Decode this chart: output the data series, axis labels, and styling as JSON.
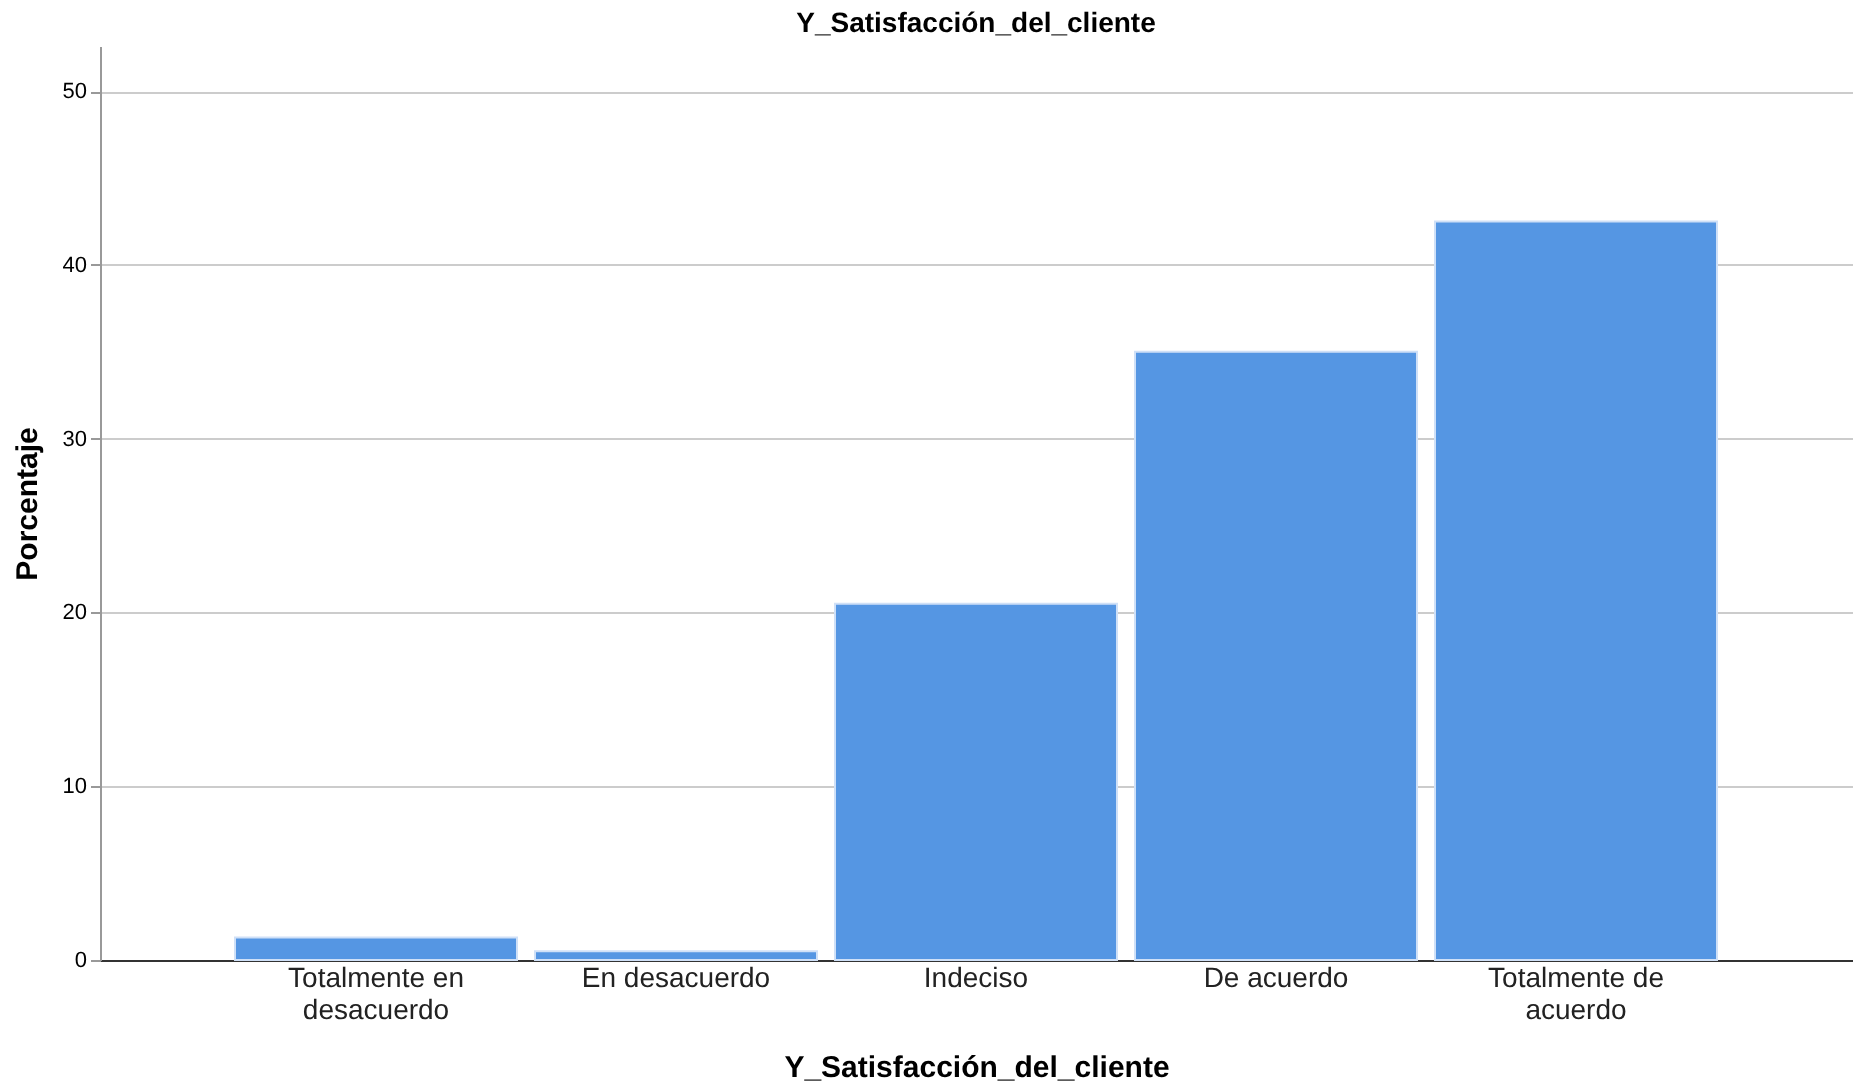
{
  "chart_data": {
    "type": "bar",
    "title": "Y_Satisfacción_del_cliente",
    "xlabel": "Y_Satisfacción_del_cliente",
    "ylabel": "Porcentaje",
    "categories": [
      "Totalmente en desacuerdo",
      "En desacuerdo",
      "Indeciso",
      "De acuerdo",
      "Totalmente de acuerdo"
    ],
    "values": [
      1.3,
      0.5,
      20.5,
      35.0,
      42.5
    ],
    "color": "#5596e3",
    "ylim": [
      0,
      52.6
    ],
    "yticks": [
      0,
      10,
      20,
      30,
      40,
      50
    ],
    "grid": "y"
  }
}
